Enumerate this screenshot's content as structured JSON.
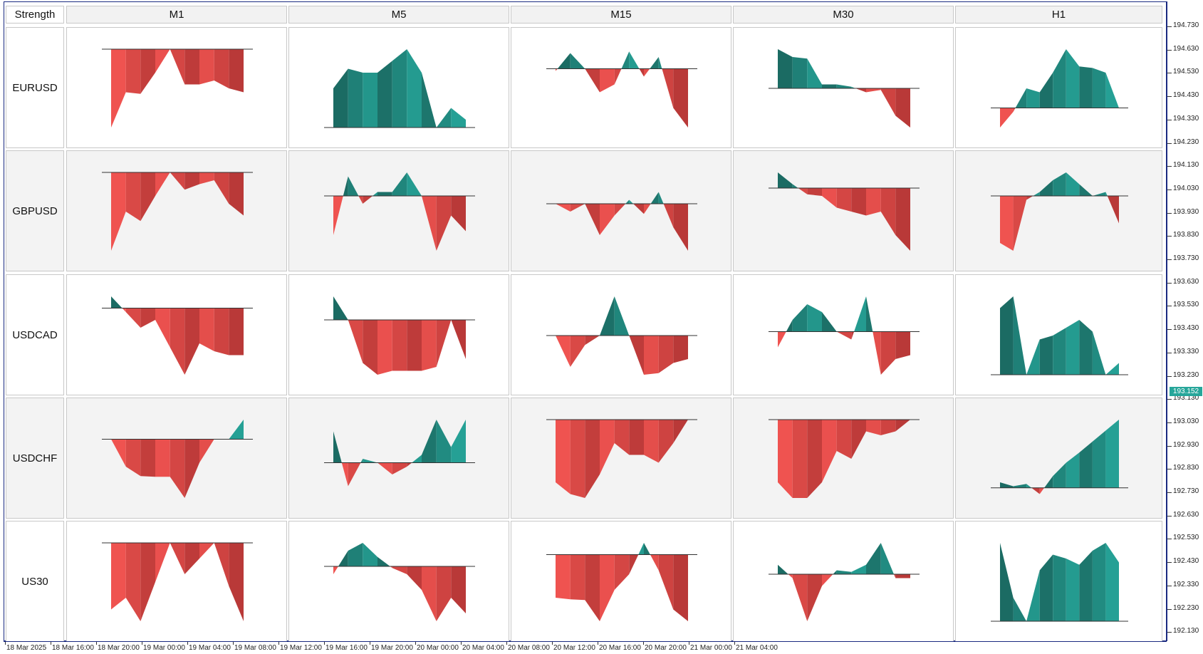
{
  "header": {
    "corner_label": "Strength",
    "timeframes": [
      "M1",
      "M5",
      "M15",
      "M30",
      "H1"
    ]
  },
  "symbols": [
    "EURUSD",
    "GBPUSD",
    "USDCAD",
    "USDCHF",
    "US30"
  ],
  "colors": {
    "positive_light": "#26a69a",
    "positive_dark": "#1b6b63",
    "negative_light": "#ef5350",
    "negative_dark": "#8b2323",
    "baseline": "#333333",
    "price_marker": "#26a69a"
  },
  "price_scale": {
    "labels": [
      "194.730",
      "194.630",
      "194.530",
      "194.430",
      "194.330",
      "194.230",
      "194.130",
      "194.030",
      "193.930",
      "193.830",
      "193.730",
      "193.630",
      "193.530",
      "193.430",
      "193.330",
      "193.230",
      "193.130",
      "193.030",
      "192.930",
      "192.830",
      "192.730",
      "192.630",
      "192.530",
      "192.430",
      "192.330",
      "192.230",
      "192.130"
    ],
    "current_price": "193.152"
  },
  "time_scale": {
    "labels": [
      "18 Mar 2025",
      "18 Mar 16:00",
      "18 Mar 20:00",
      "19 Mar 00:00",
      "19 Mar 04:00",
      "19 Mar 08:00",
      "19 Mar 12:00",
      "19 Mar 16:00",
      "19 Mar 20:00",
      "20 Mar 00:00",
      "20 Mar 04:00",
      "20 Mar 08:00",
      "20 Mar 12:00",
      "20 Mar 16:00",
      "20 Mar 20:00",
      "21 Mar 00:00",
      "21 Mar 04:00"
    ]
  },
  "chart_data": {
    "type": "area",
    "note_rows": [
      "EURUSD",
      "GBPUSD",
      "USDCAD",
      "USDCHF",
      "US30"
    ],
    "note_cols": [
      "M1",
      "M5",
      "M15",
      "M30",
      "H1"
    ],
    "grid": [
      [
        {
          "baseline": 1.0,
          "values": [
            0.0,
            0.45,
            0.43,
            0.7,
            1.0,
            0.55,
            0.55,
            0.6,
            0.5,
            0.45
          ]
        },
        {
          "baseline": 0.0,
          "values": [
            0.5,
            0.75,
            0.7,
            0.7,
            0.85,
            1.0,
            0.7,
            0.0,
            0.25,
            0.1
          ]
        },
        {
          "baseline": 0.75,
          "values": [
            0.72,
            0.95,
            0.75,
            0.45,
            0.55,
            0.97,
            0.65,
            0.9,
            0.25,
            0.0
          ]
        },
        {
          "baseline": 0.5,
          "values": [
            1.0,
            0.9,
            0.88,
            0.55,
            0.55,
            0.52,
            0.45,
            0.48,
            0.15,
            0.0
          ]
        },
        {
          "baseline": 0.25,
          "values": [
            0.0,
            0.2,
            0.5,
            0.45,
            0.7,
            1.0,
            0.78,
            0.76,
            0.7,
            0.25
          ]
        }
      ],
      [
        {
          "baseline": 1.0,
          "values": [
            0.0,
            0.5,
            0.38,
            0.7,
            1.0,
            0.78,
            0.85,
            0.9,
            0.6,
            0.45
          ]
        },
        {
          "baseline": 0.7,
          "values": [
            0.2,
            0.95,
            0.6,
            0.75,
            0.75,
            1.0,
            0.7,
            0.0,
            0.45,
            0.25
          ]
        },
        {
          "baseline": 0.6,
          "values": [
            0.6,
            0.5,
            0.6,
            0.2,
            0.45,
            0.65,
            0.47,
            0.75,
            0.3,
            0.0
          ]
        },
        {
          "baseline": 0.8,
          "values": [
            1.0,
            0.85,
            0.72,
            0.7,
            0.55,
            0.5,
            0.45,
            0.5,
            0.2,
            0.0
          ]
        },
        {
          "baseline": 0.7,
          "values": [
            0.1,
            0.0,
            0.65,
            0.75,
            0.9,
            1.0,
            0.85,
            0.7,
            0.75,
            0.35
          ]
        }
      ],
      [
        {
          "baseline": 0.85,
          "values": [
            1.0,
            0.8,
            0.6,
            0.7,
            0.35,
            0.0,
            0.4,
            0.3,
            0.25,
            0.25
          ]
        },
        {
          "baseline": 0.7,
          "values": [
            1.0,
            0.7,
            0.15,
            0.0,
            0.05,
            0.05,
            0.05,
            0.1,
            0.7,
            0.2
          ]
        },
        {
          "baseline": 0.5,
          "values": [
            0.5,
            0.1,
            0.38,
            0.5,
            1.0,
            0.5,
            0.0,
            0.02,
            0.15,
            0.2
          ]
        },
        {
          "baseline": 0.55,
          "values": [
            0.35,
            0.7,
            0.9,
            0.8,
            0.55,
            0.45,
            1.0,
            0.0,
            0.2,
            0.25
          ]
        },
        {
          "baseline": 0.0,
          "values": [
            0.85,
            1.0,
            0.0,
            0.45,
            0.5,
            0.6,
            0.7,
            0.55,
            0.0,
            0.15
          ]
        }
      ],
      [
        {
          "baseline": 0.75,
          "values": [
            0.75,
            0.4,
            0.28,
            0.27,
            0.27,
            0.0,
            0.45,
            0.75,
            0.75,
            1.0
          ]
        },
        {
          "baseline": 0.45,
          "values": [
            0.85,
            0.15,
            0.5,
            0.45,
            0.3,
            0.4,
            0.55,
            1.0,
            0.65,
            1.0
          ]
        },
        {
          "baseline": 1.0,
          "values": [
            0.2,
            0.05,
            0.0,
            0.3,
            0.7,
            0.55,
            0.55,
            0.45,
            0.7,
            1.0
          ]
        },
        {
          "baseline": 1.0,
          "values": [
            0.2,
            0.0,
            0.0,
            0.2,
            0.6,
            0.5,
            0.85,
            0.8,
            0.85,
            1.0
          ]
        },
        {
          "baseline": 0.13,
          "values": [
            0.2,
            0.15,
            0.18,
            0.05,
            0.28,
            0.45,
            0.58,
            0.72,
            0.86,
            1.0
          ]
        }
      ],
      [
        {
          "baseline": 1.0,
          "values": [
            0.15,
            0.3,
            0.0,
            0.5,
            1.0,
            0.6,
            0.8,
            1.0,
            0.45,
            0.0
          ]
        },
        {
          "baseline": 0.7,
          "values": [
            0.6,
            0.9,
            1.0,
            0.82,
            0.68,
            0.6,
            0.4,
            0.0,
            0.3,
            0.1
          ]
        },
        {
          "baseline": 0.85,
          "values": [
            0.3,
            0.28,
            0.27,
            0.0,
            0.4,
            0.6,
            1.0,
            0.65,
            0.15,
            0.0
          ]
        },
        {
          "baseline": 0.6,
          "values": [
            0.72,
            0.55,
            0.0,
            0.45,
            0.65,
            0.63,
            0.72,
            1.0,
            0.55,
            0.55
          ]
        },
        {
          "baseline": 0.0,
          "values": [
            1.0,
            0.3,
            0.0,
            0.65,
            0.85,
            0.8,
            0.72,
            0.9,
            1.0,
            0.75
          ]
        }
      ]
    ]
  }
}
